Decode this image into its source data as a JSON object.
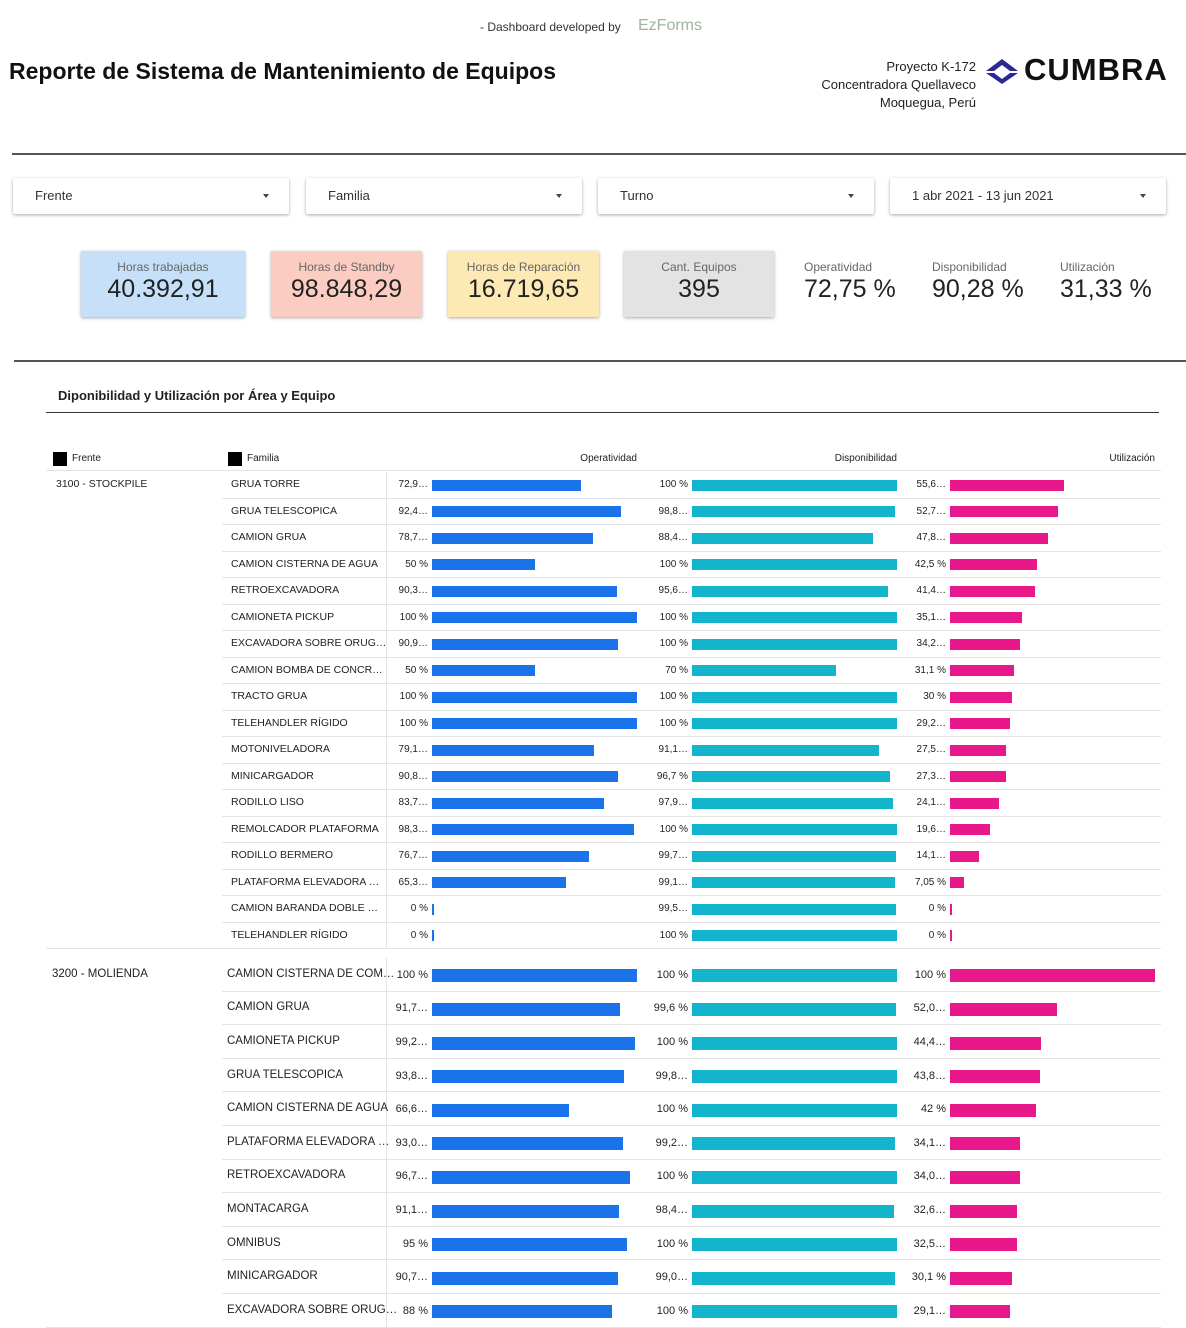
{
  "header": {
    "credit": "- Dashboard developed by",
    "credit_brand": "EzForms",
    "title": "Reporte de Sistema de Mantenimiento de Equipos",
    "project": [
      "Proyecto K-172",
      "Concentradora Quellaveco",
      "Moquegua, Perú"
    ],
    "brand": "CUMBRA"
  },
  "filters": [
    "Frente",
    "Familia",
    "Turno",
    "1 abr 2021 - 13 jun 2021"
  ],
  "kpis": [
    {
      "label": "Horas trabajadas",
      "value": "40.392,91",
      "color": "#c6e0f9"
    },
    {
      "label": "Horas de Standby",
      "value": "98.848,29",
      "color": "#fbcdc2"
    },
    {
      "label": "Horas de Reparación",
      "value": "16.719,65",
      "color": "#fde9b4"
    },
    {
      "label": "Cant. Equipos",
      "value": "395",
      "color": "#e3e3e3"
    },
    {
      "label": "Operatividad",
      "value": "72,75 %"
    },
    {
      "label": "Disponibilidad",
      "value": "90,28 %"
    },
    {
      "label": "Utilización",
      "value": "31,33 %"
    }
  ],
  "table": {
    "title": "Diponibilidad y Utilización por Área y Equipo",
    "headers": [
      "Frente",
      "Familia"
    ],
    "metrics": [
      {
        "name": "Operatividad",
        "color": "#1a73e8"
      },
      {
        "name": "Disponibilidad",
        "color": "#12b5cb"
      },
      {
        "name": "Utilización",
        "color": "#e8178a"
      }
    ],
    "groups": [
      {
        "frente": "3100 - STOCKPILE",
        "rows": [
          {
            "familia": "GRUA TORRE",
            "values": [
              {
                "value": 72.9,
                "label": "72,9…"
              },
              {
                "value": 100,
                "label": "100 %"
              },
              {
                "value": 55.6,
                "label": "55,6…"
              }
            ]
          },
          {
            "familia": "GRUA TELESCOPICA",
            "values": [
              {
                "value": 92.4,
                "label": "92,4…"
              },
              {
                "value": 98.8,
                "label": "98,8…"
              },
              {
                "value": 52.7,
                "label": "52,7…"
              }
            ]
          },
          {
            "familia": "CAMION GRUA",
            "values": [
              {
                "value": 78.7,
                "label": "78,7…"
              },
              {
                "value": 88.4,
                "label": "88,4…"
              },
              {
                "value": 47.8,
                "label": "47,8…"
              }
            ]
          },
          {
            "familia": "CAMION CISTERNA DE AGUA",
            "values": [
              {
                "value": 50,
                "label": "50 %"
              },
              {
                "value": 100,
                "label": "100 %"
              },
              {
                "value": 42.5,
                "label": "42,5 %"
              }
            ]
          },
          {
            "familia": "RETROEXCAVADORA",
            "values": [
              {
                "value": 90.3,
                "label": "90,3…"
              },
              {
                "value": 95.6,
                "label": "95,6…"
              },
              {
                "value": 41.4,
                "label": "41,4…"
              }
            ]
          },
          {
            "familia": "CAMIONETA PICKUP",
            "values": [
              {
                "value": 100,
                "label": "100 %"
              },
              {
                "value": 100,
                "label": "100 %"
              },
              {
                "value": 35.1,
                "label": "35,1…"
              }
            ]
          },
          {
            "familia": "EXCAVADORA SOBRE ORUG…",
            "values": [
              {
                "value": 90.9,
                "label": "90,9…"
              },
              {
                "value": 100,
                "label": "100 %"
              },
              {
                "value": 34.2,
                "label": "34,2…"
              }
            ]
          },
          {
            "familia": "CAMION BOMBA DE CONCR…",
            "values": [
              {
                "value": 50,
                "label": "50 %"
              },
              {
                "value": 70,
                "label": "70 %"
              },
              {
                "value": 31.1,
                "label": "31,1 %"
              }
            ]
          },
          {
            "familia": "TRACTO GRUA",
            "values": [
              {
                "value": 100,
                "label": "100 %"
              },
              {
                "value": 100,
                "label": "100 %"
              },
              {
                "value": 30,
                "label": "30 %"
              }
            ]
          },
          {
            "familia": "TELEHANDLER RÍGIDO",
            "values": [
              {
                "value": 100,
                "label": "100 %"
              },
              {
                "value": 100,
                "label": "100 %"
              },
              {
                "value": 29.2,
                "label": "29,2…"
              }
            ]
          },
          {
            "familia": "MOTONIVELADORA",
            "values": [
              {
                "value": 79.1,
                "label": "79,1…"
              },
              {
                "value": 91.1,
                "label": "91,1…"
              },
              {
                "value": 27.5,
                "label": "27,5…"
              }
            ]
          },
          {
            "familia": "MINICARGADOR",
            "values": [
              {
                "value": 90.8,
                "label": "90,8…"
              },
              {
                "value": 96.7,
                "label": "96,7 %"
              },
              {
                "value": 27.3,
                "label": "27,3…"
              }
            ]
          },
          {
            "familia": "RODILLO LISO",
            "values": [
              {
                "value": 83.7,
                "label": "83,7…"
              },
              {
                "value": 97.9,
                "label": "97,9…"
              },
              {
                "value": 24.1,
                "label": "24,1…"
              }
            ]
          },
          {
            "familia": "REMOLCADOR PLATAFORMA",
            "values": [
              {
                "value": 98.3,
                "label": "98,3…"
              },
              {
                "value": 100,
                "label": "100 %"
              },
              {
                "value": 19.6,
                "label": "19,6…"
              }
            ]
          },
          {
            "familia": "RODILLO BERMERO",
            "values": [
              {
                "value": 76.7,
                "label": "76,7…"
              },
              {
                "value": 99.7,
                "label": "99,7…"
              },
              {
                "value": 14.1,
                "label": "14,1…"
              }
            ]
          },
          {
            "familia": "PLATAFORMA ELEVADORA …",
            "values": [
              {
                "value": 65.3,
                "label": "65,3…"
              },
              {
                "value": 99.1,
                "label": "99,1…"
              },
              {
                "value": 7.05,
                "label": "7,05 %"
              }
            ]
          },
          {
            "familia": "CAMION BARANDA DOBLE …",
            "values": [
              {
                "value": 0,
                "label": "0 %"
              },
              {
                "value": 99.5,
                "label": "99,5…"
              },
              {
                "value": 0,
                "label": "0 %"
              }
            ]
          },
          {
            "familia": "TELEHANDLER RÍGIDO",
            "values": [
              {
                "value": 0,
                "label": "0 %"
              },
              {
                "value": 100,
                "label": "100 %"
              },
              {
                "value": 0,
                "label": "0 %"
              }
            ]
          }
        ]
      },
      {
        "frente": "3200 - MOLIENDA",
        "rows": [
          {
            "familia": "CAMION CISTERNA DE COM…",
            "values": [
              {
                "value": 100,
                "label": "100 %"
              },
              {
                "value": 100,
                "label": "100 %"
              },
              {
                "value": 100,
                "label": "100 %"
              }
            ]
          },
          {
            "familia": "CAMION GRUA",
            "values": [
              {
                "value": 91.7,
                "label": "91,7…"
              },
              {
                "value": 99.6,
                "label": "99,6 %"
              },
              {
                "value": 52.0,
                "label": "52,0…"
              }
            ]
          },
          {
            "familia": "CAMIONETA PICKUP",
            "values": [
              {
                "value": 99.2,
                "label": "99,2…"
              },
              {
                "value": 100,
                "label": "100 %"
              },
              {
                "value": 44.4,
                "label": "44,4…"
              }
            ]
          },
          {
            "familia": "GRUA TELESCOPICA",
            "values": [
              {
                "value": 93.8,
                "label": "93,8…"
              },
              {
                "value": 99.8,
                "label": "99,8…"
              },
              {
                "value": 43.8,
                "label": "43,8…"
              }
            ]
          },
          {
            "familia": "CAMION CISTERNA DE AGUA",
            "values": [
              {
                "value": 66.6,
                "label": "66,6…"
              },
              {
                "value": 100,
                "label": "100 %"
              },
              {
                "value": 42,
                "label": "42 %"
              }
            ]
          },
          {
            "familia": "PLATAFORMA ELEVADORA …",
            "values": [
              {
                "value": 93.0,
                "label": "93,0…"
              },
              {
                "value": 99.2,
                "label": "99,2…"
              },
              {
                "value": 34.1,
                "label": "34,1…"
              }
            ]
          },
          {
            "familia": "RETROEXCAVADORA",
            "values": [
              {
                "value": 96.7,
                "label": "96,7…"
              },
              {
                "value": 100,
                "label": "100 %"
              },
              {
                "value": 34.0,
                "label": "34,0…"
              }
            ]
          },
          {
            "familia": "MONTACARGA",
            "values": [
              {
                "value": 91.1,
                "label": "91,1…"
              },
              {
                "value": 98.4,
                "label": "98,4…"
              },
              {
                "value": 32.6,
                "label": "32,6…"
              }
            ]
          },
          {
            "familia": "OMNIBUS",
            "values": [
              {
                "value": 95,
                "label": "95 %"
              },
              {
                "value": 100,
                "label": "100 %"
              },
              {
                "value": 32.5,
                "label": "32,5…"
              }
            ]
          },
          {
            "familia": "MINICARGADOR",
            "values": [
              {
                "value": 90.7,
                "label": "90,7…"
              },
              {
                "value": 99.0,
                "label": "99,0…"
              },
              {
                "value": 30.1,
                "label": "30,1 %"
              }
            ]
          },
          {
            "familia": "EXCAVADORA SOBRE ORUG…",
            "values": [
              {
                "value": 88,
                "label": "88 %"
              },
              {
                "value": 100,
                "label": "100 %"
              },
              {
                "value": 29.1,
                "label": "29,1…"
              }
            ]
          }
        ]
      }
    ]
  }
}
